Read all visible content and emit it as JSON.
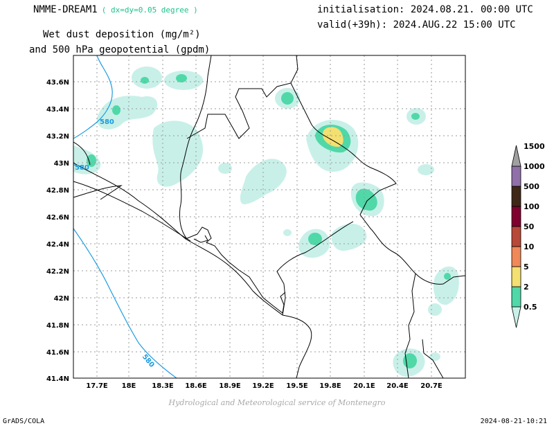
{
  "header": {
    "model": "NMME-DREAM1",
    "resolution": "( dx=dy=0.05 degree )",
    "title_line1": "Wet dust deposition (mg/m²)",
    "title_line2": "and 500 hPa geopotential (gpdm)",
    "initialisation": "initialisation: 2024.08.21. 00:00 UTC",
    "valid": "valid(+39h): 2024.AUG.22 15:00 UTC"
  },
  "map": {
    "lat_labels": [
      "43.6N",
      "43.4N",
      "43.2N",
      "43N",
      "42.8N",
      "42.6N",
      "42.4N",
      "42.2N",
      "42N",
      "41.8N",
      "41.6N",
      "41.4N"
    ],
    "lon_labels": [
      "17.7E",
      "18E",
      "18.3E",
      "18.6E",
      "18.9E",
      "19.2E",
      "19.5E",
      "19.8E",
      "20.1E",
      "20.4E",
      "20.7E"
    ],
    "contour_labels": [
      "580",
      "580",
      "580"
    ]
  },
  "legend": {
    "levels": [
      "0.5",
      "2",
      "5",
      "10",
      "50",
      "100",
      "500",
      "1000",
      "1500"
    ],
    "colors": [
      "#c8f0e8",
      "#50d8a8",
      "#f4e070",
      "#f08858",
      "#b84838",
      "#800030",
      "#402818",
      "#9070a8",
      "#a0a0a0"
    ]
  },
  "footer": {
    "credit": "Hydrological and Meteorological service of Montenegro",
    "software": "GrADS/COLA",
    "timestamp": "2024-08-21-10:21"
  }
}
